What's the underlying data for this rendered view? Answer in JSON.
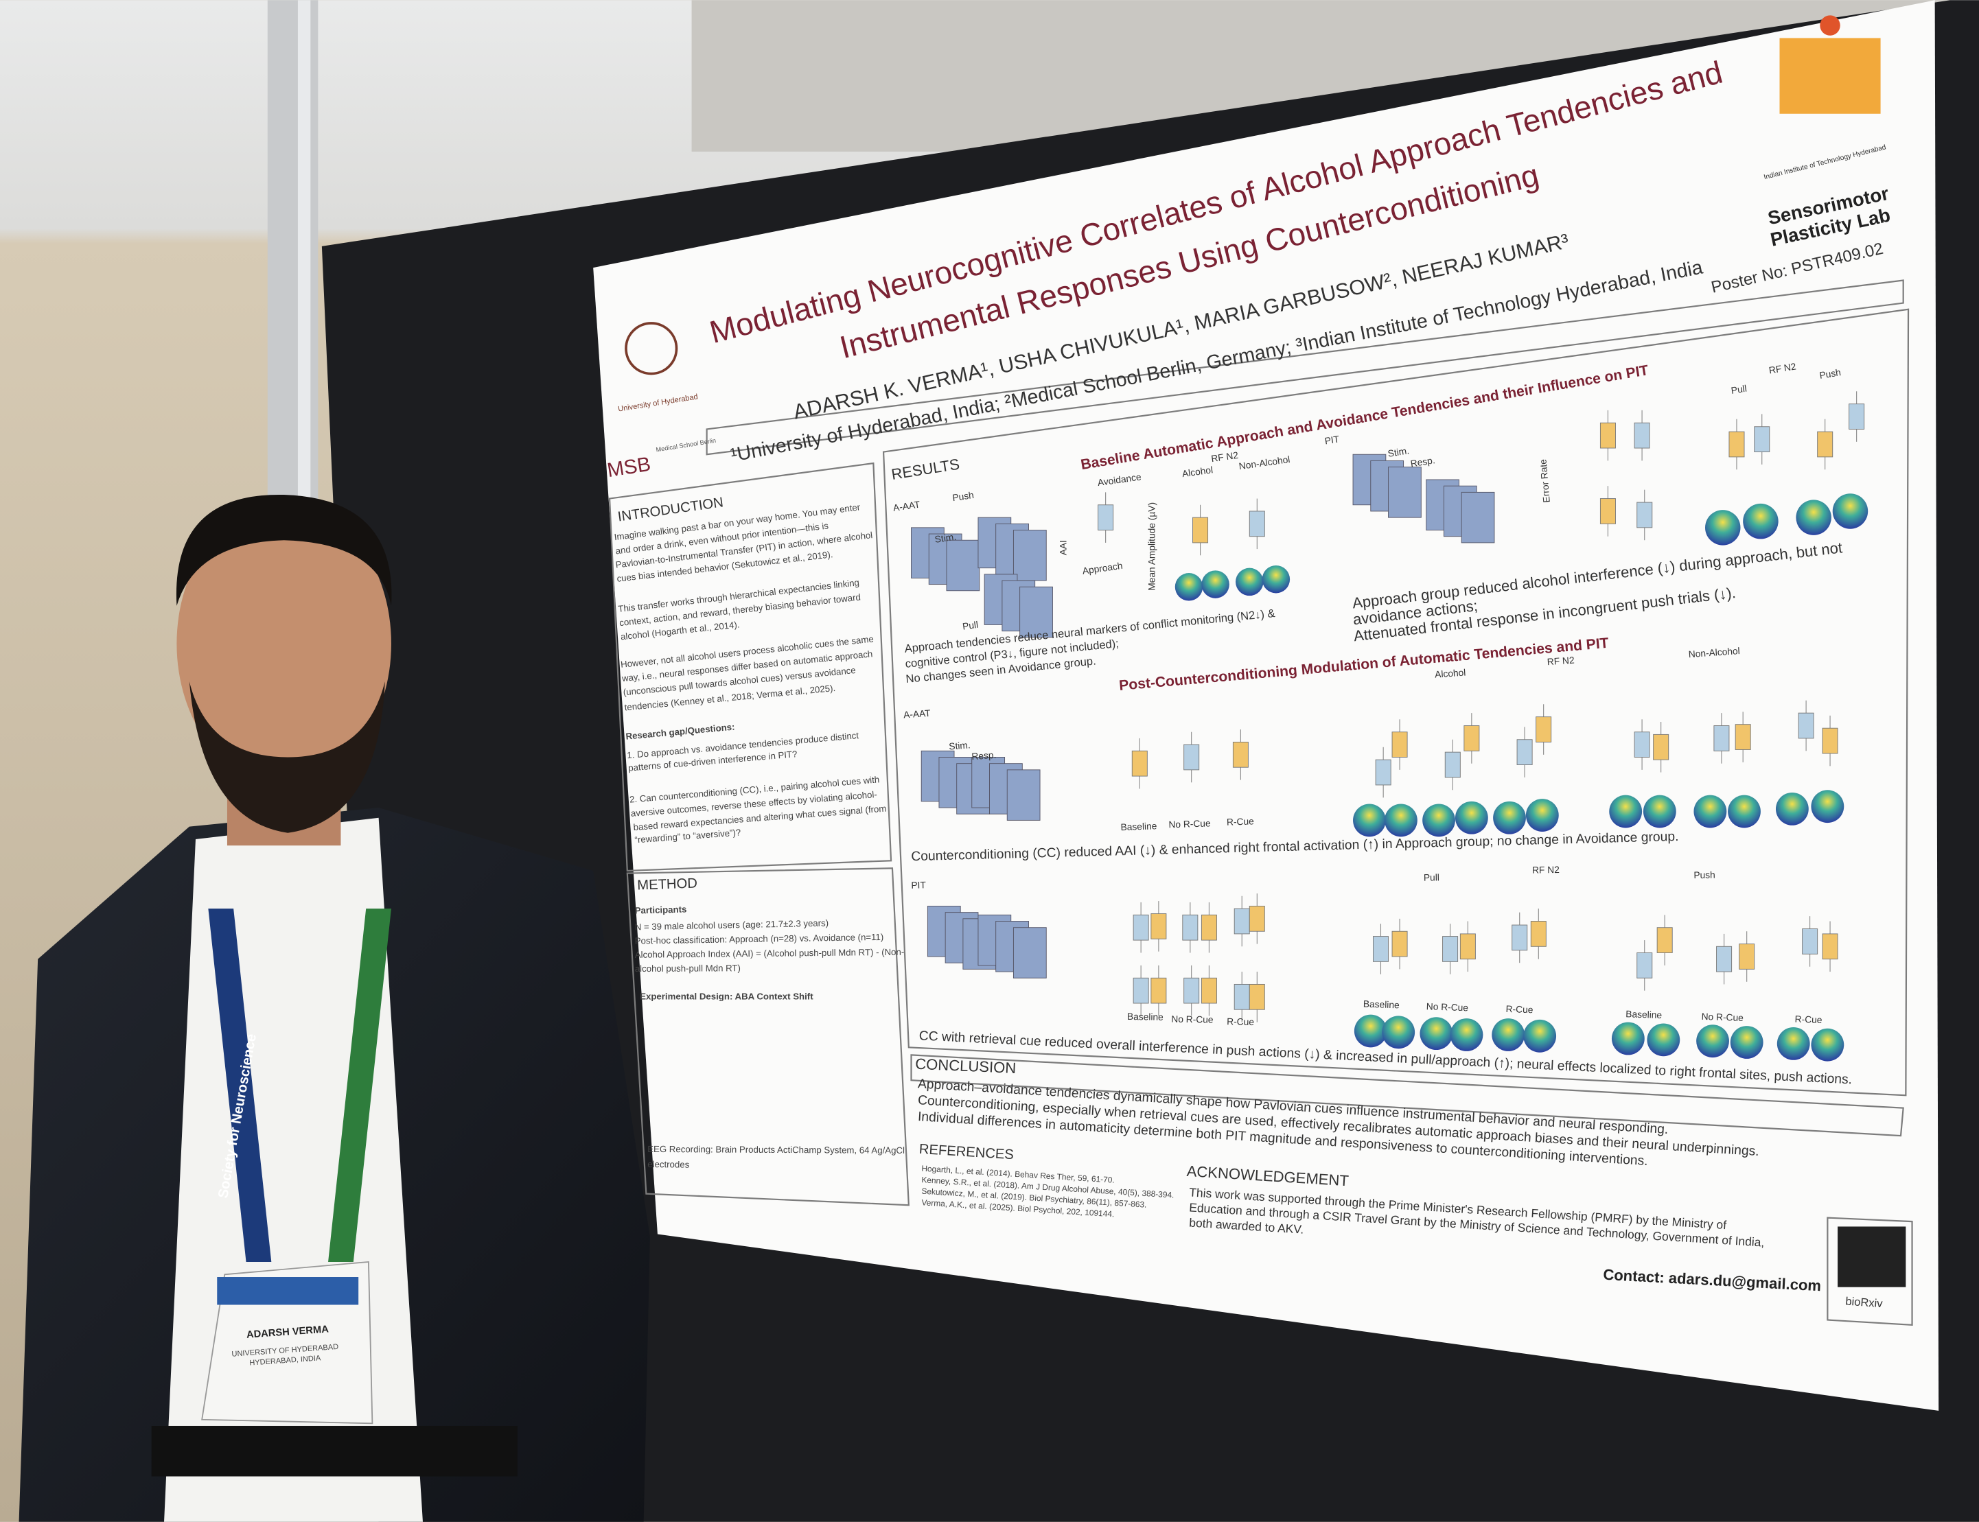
{
  "poster": {
    "title": [
      "Modulating Neurocognitive Correlates of Alcohol Approach Tendencies and",
      "Instrumental Responses Using Counterconditioning"
    ],
    "authors": "ADARSH K. VERMA¹, USHA CHIVUKULA¹, MARIA GARBUSOW², NEERAJ KUMAR³",
    "affiliations": "¹University of Hyderabad, India; ²Medical School Berlin, Germany; ³Indian Institute of Technology Hyderabad, India",
    "poster_number": "Poster No: PSTR409.02",
    "lab": [
      "Sensorimotor",
      "Plasticity Lab"
    ],
    "logos": {
      "uoh": "University of Hyderabad",
      "msb": "MSB",
      "msb_name": "Medical School Berlin",
      "iith": "Indian Institute of Technology Hyderabad",
      "biorxiv": "bioRxiv"
    },
    "introduction": {
      "heading": "INTRODUCTION",
      "lines": [
        "Imagine walking past a bar on your way home. You may enter",
        "and order a drink, even without prior intention—this is",
        "Pavlovian-to-Instrumental Transfer (PIT) in action, where alcohol",
        "cues bias intended behavior (Sekutowicz et al., 2019).",
        "This transfer works through hierarchical expectancies linking",
        "context, action, and reward, thereby biasing behavior toward",
        "alcohol (Hogarth et al., 2014).",
        "However, not all alcohol users process alcoholic cues the same",
        "way, i.e., neural responses differ based on automatic approach",
        "(unconscious pull towards alcohol cues) versus avoidance",
        "tendencies (Kenney et al., 2018; Verma et al., 2025).",
        "Research gap/Questions:",
        "1. Do approach vs. avoidance tendencies produce distinct",
        "patterns of cue-driven interference in PIT?",
        "2. Can counterconditioning (CC), i.e., pairing alcohol cues with",
        "aversive outcomes, reverse these effects by violating alcohol-",
        "based reward expectancies and altering what cues signal (from",
        "“rewarding” to “aversive”)?"
      ]
    },
    "method": {
      "heading": "METHOD",
      "lines": [
        "Participants",
        "N = 39 male alcohol users (age: 21.7±2.3 years)",
        "Post-hoc classification: Approach (n=28) vs. Avoidance (n=11)",
        "Alcohol Approach Index (AAI) = (Alcohol push-pull Mdn RT) - (Non-",
        "alcohol push-pull Mdn RT)",
        "Experimental Design: ABA Context Shift",
        "EEG Recording: Brain Products ActiChamp System, 64 Ag/AgCl",
        "electrodes"
      ]
    },
    "results": {
      "heading": "RESULTS",
      "subheadings": [
        "Baseline Automatic Approach and Avoidance Tendencies and their Influence on PIT",
        "Post-Counterconditioning Modulation of Automatic Tendencies and PIT"
      ],
      "captions": [
        [
          "Approach tendencies reduce neural markers of conflict monitoring (N2↓) &",
          "cognitive control (P3↓, figure not included);",
          "No changes seen in Avoidance group."
        ],
        [
          "Approach group reduced alcohol interference (↓) during approach, but not",
          "avoidance actions;",
          "Attenuated frontal response in incongruent push trials (↓)."
        ],
        [
          "Counterconditioning (CC) reduced AAI (↓) & enhanced right frontal activation (↑) in Approach group; no change in Avoidance group."
        ],
        [
          "CC with retrieval cue reduced overall interference in push actions (↓) & increased in pull/approach (↑); neural effects localized to right frontal sites, push actions."
        ]
      ],
      "labels": [
        "A-AAT",
        "Push",
        "Pull",
        "Stim.",
        "Avoidance",
        "Approach",
        "Alcohol",
        "RF N2",
        "Non-Alcohol",
        "AAI",
        "Mean Amplitude (µV)",
        "PIT",
        "Stim.",
        "Resp.",
        "Error Rate",
        "Pull",
        "RF N2",
        "Push",
        "A-AAT",
        "Stim.",
        "Resp.",
        "Baseline",
        "No R-Cue",
        "R-Cue",
        "Alcohol",
        "RF N2",
        "Non-Alcohol",
        "PIT",
        "Pull",
        "RF N2",
        "Push",
        "Baseline",
        "No R-Cue",
        "R-Cue",
        "Baseline",
        "No R-Cue",
        "R-Cue",
        "Baseline",
        "No R-Cue",
        "R-Cue"
      ]
    },
    "conclusion": {
      "heading": "CONCLUSION",
      "lines": [
        "Approach–avoidance tendencies dynamically shape how Pavlovian cues influence instrumental behavior and neural responding.",
        "Counterconditioning, especially when retrieval cues are used, effectively recalibrates automatic approach biases and their neural underpinnings.",
        "Individual differences in automaticity determine both PIT magnitude and responsiveness to counterconditioning interventions."
      ]
    },
    "references": {
      "heading": "REFERENCES",
      "lines": [
        "Hogarth, L., et al. (2014). Behav Res Ther, 59, 61-70.",
        "Kenney, S.R., et al. (2018). Am J Drug Alcohol Abuse, 40(5), 388-394.",
        "Sekutowicz, M., et al. (2019). Biol Psychiatry, 86(11), 857-863.",
        "Verma, A.K., et al. (2025). Biol Psychol, 202, 109144."
      ]
    },
    "acknowledgement": {
      "heading": "ACKNOWLEDGEMENT",
      "lines": [
        "This work was supported through the Prime Minister's Research Fellowship (PMRF) by the Ministry of",
        "Education and through a CSIR Travel Grant by the Ministry of Science and Technology, Government of India,",
        "both awarded to AKV."
      ]
    },
    "contact": "Contact: adars.du@gmail.com"
  },
  "badge": {
    "lanyard": "Society for Neuroscience",
    "name": "ADARSH VERMA",
    "affiliation": [
      "UNIVERSITY OF HYDERABAD",
      "HYDERABAD, INDIA"
    ]
  }
}
